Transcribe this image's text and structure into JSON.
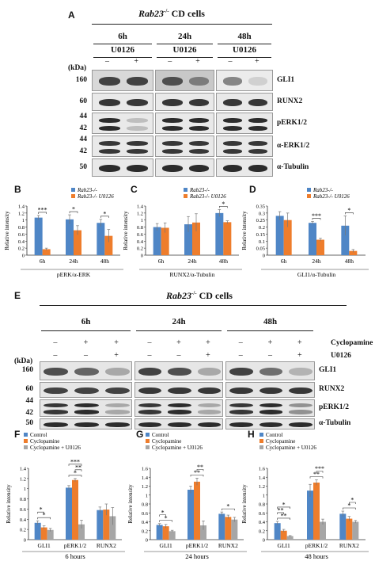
{
  "panelA": {
    "letter": "A",
    "title": "Rab23",
    "title_sup": "-/-",
    "title_rest": " CD cells",
    "times": [
      "6h",
      "24h",
      "48h"
    ],
    "treatment": "U0126",
    "signs": [
      "–",
      "+"
    ],
    "kda": "(kDa)",
    "rows": [
      {
        "protein": "GLI1",
        "mw": [
          "160"
        ]
      },
      {
        "protein": "RUNX2",
        "mw": [
          "60"
        ]
      },
      {
        "protein": "pERK1/2",
        "mw": [
          "44",
          "42"
        ]
      },
      {
        "protein": "α-ERK1/2",
        "mw": [
          "44",
          "42"
        ]
      },
      {
        "protein": "α-Tubulin",
        "mw": [
          "50"
        ]
      }
    ]
  },
  "panelE": {
    "letter": "E",
    "title": "Rab23",
    "title_sup": "-/-",
    "title_rest": " CD cells",
    "times": [
      "6h",
      "24h",
      "48h"
    ],
    "cyclo_label": "Cyclopamine",
    "u0126_label": "U0126",
    "cyclo_signs": [
      "–",
      "+",
      "+"
    ],
    "u_signs": [
      "–",
      "–",
      "+"
    ],
    "kda": "(kDa)",
    "rows": [
      {
        "protein": "GLI1",
        "mw": [
          "160"
        ]
      },
      {
        "protein": "RUNX2",
        "mw": [
          "60"
        ]
      },
      {
        "protein": "pERK1/2",
        "mw": [
          "44",
          "42"
        ]
      },
      {
        "protein": "α-Tubulin",
        "mw": [
          "50"
        ]
      }
    ]
  },
  "colors": {
    "blue": "#4f86c6",
    "orange": "#ee7d2c",
    "gray": "#a6a6a6"
  },
  "chart_data": [
    {
      "id": "B",
      "type": "bar",
      "ylabel": "Relative intensity",
      "xlabel": "pERK/α-ERK",
      "categories": [
        "6h",
        "24h",
        "48h"
      ],
      "ylim": [
        0,
        1.4
      ],
      "yticks": [
        0,
        0.2,
        0.4,
        0.6,
        0.8,
        1,
        1.2,
        1.4
      ],
      "legend": [
        "Rab23-/-",
        "Rab23-/- U0126"
      ],
      "series": [
        {
          "values": [
            1.07,
            1.02,
            0.92
          ],
          "err": [
            0.06,
            0.13,
            0.1
          ]
        },
        {
          "values": [
            0.17,
            0.71,
            0.55
          ],
          "err": [
            0.03,
            0.13,
            0.18
          ]
        }
      ],
      "sig": [
        {
          "cat": 0,
          "label": "***"
        },
        {
          "cat": 1,
          "label": "*"
        },
        {
          "cat": 2,
          "label": "*"
        }
      ]
    },
    {
      "id": "C",
      "type": "bar",
      "ylabel": "Relative intensity",
      "xlabel": "RUNX2/α-Tubulin",
      "categories": [
        "6h",
        "24h",
        "48h"
      ],
      "ylim": [
        0,
        1.4
      ],
      "yticks": [
        0,
        0.2,
        0.4,
        0.6,
        0.8,
        1,
        1.2,
        1.4
      ],
      "legend": [
        "Rab23-/-",
        "Rab23-/- U0126"
      ],
      "series": [
        {
          "values": [
            0.8,
            0.88,
            1.2
          ],
          "err": [
            0.1,
            0.22,
            0.1
          ]
        },
        {
          "values": [
            0.78,
            0.93,
            0.94
          ],
          "err": [
            0.14,
            0.25,
            0.04
          ]
        }
      ],
      "sig": [
        {
          "cat": 2,
          "label": "*"
        }
      ]
    },
    {
      "id": "D",
      "type": "bar",
      "ylabel": "Relative intensity",
      "xlabel": "GLI1/α-Tubulin",
      "categories": [
        "6h",
        "24h",
        "48h"
      ],
      "ylim": [
        0,
        0.35
      ],
      "yticks": [
        0,
        0.05,
        0.1,
        0.15,
        0.2,
        0.25,
        0.3,
        0.35
      ],
      "legend": [
        "Rab23-/-",
        "Rab23-/- U0126"
      ],
      "series": [
        {
          "values": [
            0.28,
            0.23,
            0.21
          ],
          "err": [
            0.03,
            0.01,
            0.07
          ]
        },
        {
          "values": [
            0.25,
            0.11,
            0.03
          ],
          "err": [
            0.05,
            0.01,
            0.01
          ]
        }
      ],
      "sig": [
        {
          "cat": 1,
          "label": "***"
        },
        {
          "cat": 2,
          "label": "*"
        }
      ]
    },
    {
      "id": "F",
      "type": "bar",
      "ylabel": "Relative intensity",
      "xlabel": "6 hours",
      "categories": [
        "GLI1",
        "pERK1/2",
        "RUNX2"
      ],
      "ylim": [
        0,
        1.4
      ],
      "yticks": [
        0,
        0.2,
        0.4,
        0.6,
        0.8,
        1,
        1.2,
        1.4
      ],
      "legend": [
        "Control",
        "Cyclopamine",
        "Cyclopamine + U0126"
      ],
      "series": [
        {
          "values": [
            0.33,
            1.02,
            0.58
          ],
          "err": [
            0.04,
            0.04,
            0.06
          ]
        },
        {
          "values": [
            0.24,
            1.17,
            0.59
          ],
          "err": [
            0.03,
            0.03,
            0.11
          ]
        },
        {
          "values": [
            0.19,
            0.3,
            0.46
          ],
          "err": [
            0.03,
            0.08,
            0.17
          ]
        }
      ],
      "sig": [
        {
          "cat": 0,
          "from": 0,
          "to": 2,
          "label": "*",
          "level": 0
        },
        {
          "cat": 0,
          "from": 0,
          "to": 1,
          "label": "*",
          "level": 1
        },
        {
          "cat": 1,
          "from": 0,
          "to": 2,
          "label": "*",
          "level": 0
        },
        {
          "cat": 1,
          "from": 1,
          "to": 2,
          "label": "**",
          "level": 1
        },
        {
          "cat": 1,
          "from": 0,
          "to": 2,
          "label": "***",
          "level": 2
        }
      ]
    },
    {
      "id": "G",
      "type": "bar",
      "ylabel": "Relative intensity",
      "xlabel": "24 hours",
      "categories": [
        "GLI1",
        "pERK1/2",
        "RUNX2"
      ],
      "ylim": [
        0,
        1.6
      ],
      "yticks": [
        0,
        0.2,
        0.4,
        0.6,
        0.8,
        1,
        1.2,
        1.4,
        1.6
      ],
      "legend": [
        "Control",
        "Cyclopamine",
        "Cyclopamine + U0126"
      ],
      "series": [
        {
          "values": [
            0.33,
            1.12,
            0.58
          ],
          "err": [
            0.03,
            0.08,
            0.04
          ]
        },
        {
          "values": [
            0.3,
            1.3,
            0.51
          ],
          "err": [
            0.04,
            0.08,
            0.04
          ]
        },
        {
          "values": [
            0.19,
            0.32,
            0.45
          ],
          "err": [
            0.02,
            0.1,
            0.05
          ]
        }
      ],
      "sig": [
        {
          "cat": 0,
          "from": 0,
          "to": 2,
          "label": "*",
          "level": 0
        },
        {
          "cat": 0,
          "from": 0,
          "to": 1,
          "label": "*",
          "level": 1
        },
        {
          "cat": 1,
          "from": 0,
          "to": 2,
          "label": "**",
          "level": 0
        },
        {
          "cat": 1,
          "from": 1,
          "to": 2,
          "label": "**",
          "level": 1
        },
        {
          "cat": 2,
          "from": 0,
          "to": 2,
          "label": "*",
          "level": 0
        }
      ]
    },
    {
      "id": "H",
      "type": "bar",
      "ylabel": "Relative intensity",
      "xlabel": "48 hours",
      "categories": [
        "GLI1",
        "pERK1/2",
        "RUNX2"
      ],
      "ylim": [
        0,
        1.6
      ],
      "yticks": [
        0,
        0.2,
        0.4,
        0.6,
        0.8,
        1,
        1.2,
        1.4,
        1.6
      ],
      "legend": [
        "Control",
        "Cyclopamine",
        "Cyclopamine + U0126"
      ],
      "series": [
        {
          "values": [
            0.37,
            1.1,
            0.58
          ],
          "err": [
            0.04,
            0.14,
            0.06
          ]
        },
        {
          "values": [
            0.2,
            1.28,
            0.47
          ],
          "err": [
            0.03,
            0.06,
            0.05
          ]
        },
        {
          "values": [
            0.08,
            0.4,
            0.4
          ],
          "err": [
            0.01,
            0.06,
            0.03
          ]
        }
      ],
      "sig": [
        {
          "cat": 0,
          "from": 0,
          "to": 2,
          "label": "**",
          "level": 0
        },
        {
          "cat": 0,
          "from": 0,
          "to": 1,
          "label": "**",
          "level": 1
        },
        {
          "cat": 0,
          "from": 0,
          "to": 2,
          "label": "*",
          "level": 2
        },
        {
          "cat": 1,
          "from": 0,
          "to": 2,
          "label": "**",
          "level": 0
        },
        {
          "cat": 1,
          "from": 1,
          "to": 2,
          "label": "***",
          "level": 1
        },
        {
          "cat": 2,
          "from": 0,
          "to": 2,
          "label": "*",
          "level": 0
        },
        {
          "cat": 2,
          "from": 1,
          "to": 2,
          "label": "*",
          "level": 1
        }
      ]
    }
  ]
}
